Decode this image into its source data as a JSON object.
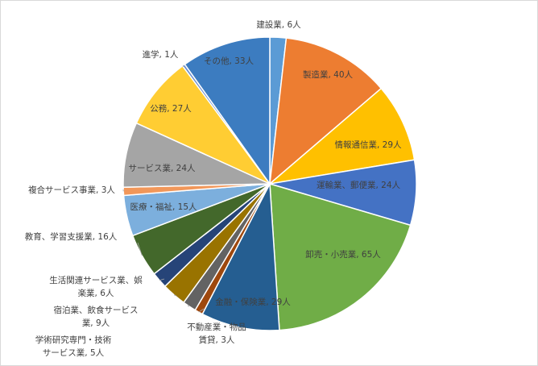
{
  "chart_data": {
    "type": "pie",
    "title": "",
    "slices": [
      {
        "name": "建設業",
        "value": 6,
        "label": "建設業, 6人",
        "color": "#5B9BD5"
      },
      {
        "name": "製造業",
        "value": 40,
        "label": "製造業, 40人",
        "color": "#ED7D31"
      },
      {
        "name": "情報通信業",
        "value": 29,
        "label": "情報通信業, 29人",
        "color": "#FFC000"
      },
      {
        "name": "運輸業、郵便業",
        "value": 24,
        "label": "運輸業、郵便業, 24人",
        "color": "#4472C4"
      },
      {
        "name": "卸売・小売業",
        "value": 65,
        "label": "卸売・小売業, 65人",
        "color": "#70AD47"
      },
      {
        "name": "金融・保険業",
        "value": 29,
        "label": "金融・保険業, 29人",
        "color": "#255E91"
      },
      {
        "name": "不動産業・物品賃貸",
        "value": 3,
        "label": [
          "不動産業・物品",
          "賃貸, 3人"
        ],
        "color": "#9E480E"
      },
      {
        "name": "学術研究専門・技術サービス業",
        "value": 5,
        "label": [
          "学術研究専門・技術",
          "サービス業, 5人"
        ],
        "color": "#636363"
      },
      {
        "name": "宿泊業、飲食サービス業",
        "value": 9,
        "label": [
          "宿泊業、飲食サービス",
          "業, 9人"
        ],
        "color": "#997300"
      },
      {
        "name": "生活関連サービス業、娯楽業",
        "value": 6,
        "label": [
          "生活関連サービス業、娯",
          "楽業, 6人"
        ],
        "color": "#264478"
      },
      {
        "name": "教育、学習支援業",
        "value": 16,
        "label": "教育、学習支援業, 16人",
        "color": "#43682B"
      },
      {
        "name": "医療・福祉",
        "value": 15,
        "label": "医療・福祉, 15人",
        "color": "#7CAFDD"
      },
      {
        "name": "複合サービス事業",
        "value": 3,
        "label": "複合サービス事業, 3人",
        "color": "#F1975A"
      },
      {
        "name": "サービス業",
        "value": 24,
        "label": "サービス業, 24人",
        "color": "#A5A5A5"
      },
      {
        "name": "公務",
        "value": 27,
        "label": "公務, 27人",
        "color": "#FFCD33"
      },
      {
        "name": "進学",
        "value": 1,
        "label": "進学, 1人",
        "color": "#698ED0"
      },
      {
        "name": "その他",
        "value": 33,
        "label": "その他, 33人",
        "color": "#3C7CC0"
      }
    ],
    "start": "12 o'clock",
    "direction": "clockwise",
    "legend": "none"
  }
}
